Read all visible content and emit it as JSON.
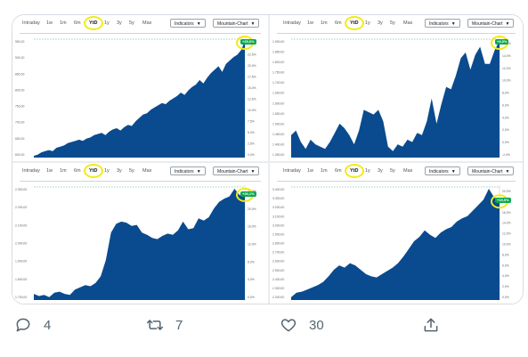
{
  "tabs": [
    "Intraday",
    "1w",
    "1m",
    "6m",
    "YtD",
    "1y",
    "3y",
    "5y",
    "Max"
  ],
  "active_tab": "YtD",
  "indicators_label": "Indicators",
  "chart_type_label": "Mountain-Chart",
  "highlight_color": "#f2ea19",
  "area_color": "#0a4b8f",
  "badge_color": "#0aa84f",
  "panels": [
    {
      "name": "top-left",
      "y_labels": [
        "950,00",
        "900,00",
        "850,00",
        "800,00",
        "750,00",
        "700,00",
        "650,00",
        "600,00"
      ],
      "right_labels": [
        "25,0%",
        "22,5%",
        "20,0%",
        "17,5%",
        "15,0%",
        "12,5%",
        "10,0%",
        "7,5%",
        "5,0%",
        "2,5%",
        "0,0%"
      ],
      "badge": "+25,0%",
      "chart_data": {
        "type": "area",
        "values": [
          0,
          1,
          3,
          4,
          5,
          4,
          7,
          8,
          9,
          11,
          12,
          13,
          14,
          13,
          15,
          16,
          18,
          19,
          20,
          18,
          21,
          23,
          24,
          22,
          25,
          27,
          26,
          30,
          33,
          36,
          37,
          40,
          42,
          44,
          46,
          45,
          48,
          50,
          52,
          55,
          53,
          57,
          60,
          62,
          66,
          63,
          68,
          72,
          75,
          78,
          73,
          80,
          83,
          86,
          88,
          92,
          100
        ]
      }
    },
    {
      "name": "top-right",
      "y_labels": [
        "1.900,00",
        "1.850,00",
        "1.800,00",
        "1.750,00",
        "1.700,00",
        "1.650,00",
        "1.600,00",
        "1.550,00",
        "1.500,00",
        "1.450,00",
        "1.400,00",
        "1.350,00"
      ],
      "right_labels": [
        "16,0%",
        "14,0%",
        "12,0%",
        "10,0%",
        "8,0%",
        "6,0%",
        "4,0%",
        "2,0%",
        "0,0%",
        "-2,0%"
      ],
      "badge": "+9,5%",
      "chart_data": {
        "type": "area",
        "values": [
          18,
          22,
          12,
          6,
          14,
          10,
          8,
          6,
          12,
          20,
          28,
          24,
          18,
          10,
          22,
          40,
          38,
          36,
          40,
          30,
          8,
          4,
          10,
          8,
          14,
          12,
          20,
          18,
          30,
          50,
          28,
          45,
          60,
          58,
          70,
          85,
          90,
          75,
          88,
          95,
          80,
          80,
          92,
          100
        ]
      }
    },
    {
      "name": "bottom-left",
      "y_labels": [
        "2.300,00",
        "2.200,00",
        "2.100,00",
        "2.000,00",
        "1.900,00",
        "1.800,00",
        "1.700,00"
      ],
      "right_labels": [
        "24,0%",
        "20,0%",
        "16,0%",
        "12,0%",
        "8,0%",
        "4,0%",
        "0,0%"
      ],
      "badge": "+26,1%",
      "chart_data": {
        "type": "area",
        "values": [
          4,
          2,
          3,
          1,
          5,
          6,
          4,
          3,
          8,
          10,
          12,
          11,
          14,
          20,
          35,
          60,
          68,
          70,
          69,
          66,
          67,
          60,
          58,
          55,
          54,
          57,
          59,
          58,
          62,
          70,
          63,
          64,
          73,
          71,
          74,
          82,
          88,
          91,
          93,
          100,
          94,
          96
        ]
      }
    },
    {
      "name": "bottom-right",
      "y_labels": [
        "3.400,00",
        "3.300,00",
        "3.200,00",
        "3.100,00",
        "3.000,00",
        "2.900,00",
        "2.800,00",
        "2.700,00",
        "2.600,00",
        "2.500,00",
        "2.400,00",
        "2.300,00",
        "2.200,00"
      ],
      "right_labels": [
        "20,0%",
        "18,0%",
        "16,0%",
        "14,0%",
        "12,0%",
        "10,0%",
        "8,0%",
        "6,0%",
        "4,0%",
        "2,0%",
        "0,0%"
      ],
      "badge": "+19,0%",
      "chart_data": {
        "type": "area",
        "values": [
          1,
          5,
          6,
          8,
          10,
          12,
          15,
          20,
          26,
          30,
          28,
          32,
          30,
          26,
          22,
          20,
          19,
          22,
          25,
          28,
          32,
          38,
          45,
          52,
          56,
          62,
          58,
          55,
          60,
          63,
          65,
          70,
          73,
          75,
          80,
          85,
          90,
          100,
          92,
          90
        ]
      }
    }
  ],
  "actions": {
    "replies": "4",
    "retweets": "7",
    "likes": "30"
  }
}
